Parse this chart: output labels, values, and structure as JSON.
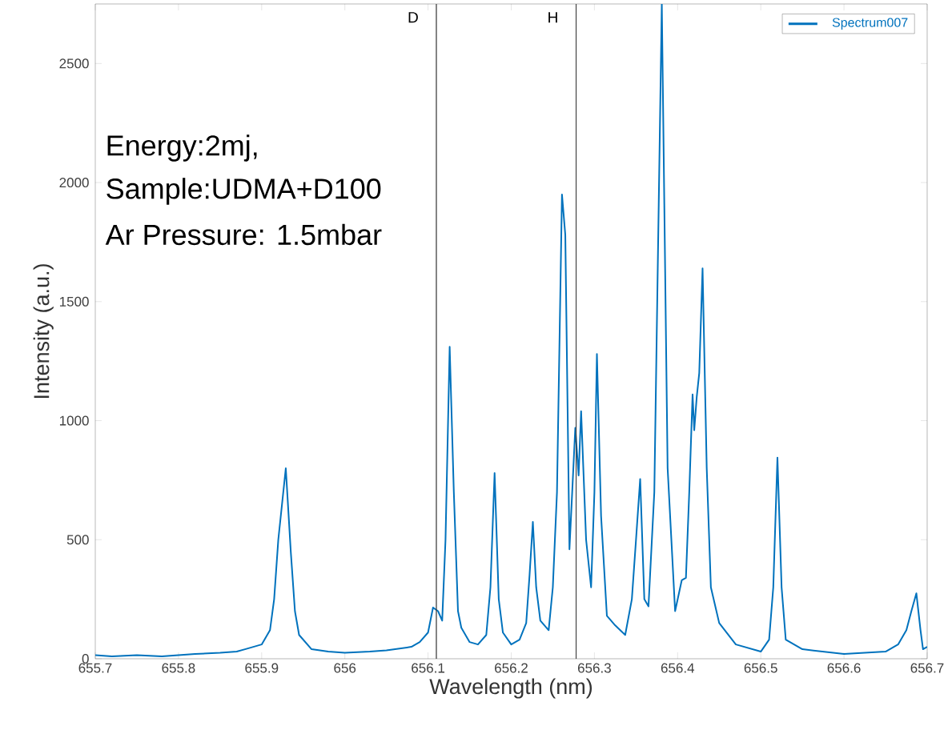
{
  "chart_data": {
    "type": "line",
    "xlabel": "Wavelength (nm)",
    "ylabel": "Intensity (a.u.)",
    "xlim": [
      655.7,
      656.7
    ],
    "ylim": [
      0,
      2750
    ],
    "xticks": [
      655.7,
      655.8,
      655.9,
      656,
      656.1,
      656.2,
      656.3,
      656.4,
      656.5,
      656.6,
      656.7
    ],
    "yticks": [
      0,
      500,
      1000,
      1500,
      2000,
      2500
    ],
    "legend": "top right",
    "grid": false,
    "annotations": [
      "Energy:2mj,",
      "Sample:UDMA+D100",
      "Ar Pressure: 1.5mbar"
    ],
    "ref_lines": [
      {
        "axis": "x",
        "value": 656.11,
        "label": "D",
        "color": "#404040"
      },
      {
        "axis": "x",
        "value": 656.278,
        "label": "H",
        "color": "#404040"
      }
    ],
    "series": [
      {
        "name": "Spectrum007",
        "color": "#0072bd",
        "x": [
          655.7,
          655.72,
          655.75,
          655.78,
          655.8,
          655.82,
          655.85,
          655.87,
          655.88,
          655.9,
          655.91,
          655.915,
          655.92,
          655.929,
          655.935,
          655.94,
          655.945,
          655.96,
          655.98,
          656.0,
          656.03,
          656.05,
          656.08,
          656.09,
          656.1,
          656.106,
          656.112,
          656.117,
          656.121,
          656.126,
          656.131,
          656.136,
          656.14,
          656.15,
          656.16,
          656.17,
          656.175,
          656.18,
          656.185,
          656.19,
          656.2,
          656.21,
          656.218,
          656.222,
          656.226,
          656.23,
          656.235,
          656.245,
          656.25,
          656.255,
          656.261,
          656.265,
          656.27,
          656.277,
          656.281,
          656.284,
          656.29,
          656.296,
          656.3,
          656.303,
          656.308,
          656.315,
          656.325,
          656.337,
          656.345,
          656.35,
          656.355,
          656.36,
          656.365,
          656.372,
          656.381,
          656.388,
          656.397,
          656.405,
          656.41,
          656.414,
          656.418,
          656.42,
          656.423,
          656.426,
          656.43,
          656.435,
          656.44,
          656.45,
          656.47,
          656.5,
          656.51,
          656.515,
          656.52,
          656.525,
          656.53,
          656.55,
          656.6,
          656.65,
          656.665,
          656.675,
          656.681,
          656.687,
          656.692,
          656.695,
          656.7
        ],
        "values": [
          15,
          10,
          15,
          10,
          15,
          20,
          25,
          30,
          40,
          60,
          120,
          250,
          500,
          800,
          450,
          200,
          100,
          40,
          30,
          25,
          30,
          35,
          50,
          70,
          110,
          215,
          200,
          160,
          500,
          1310,
          700,
          200,
          130,
          70,
          60,
          100,
          300,
          780,
          250,
          110,
          60,
          80,
          150,
          350,
          575,
          300,
          160,
          120,
          300,
          700,
          1950,
          1780,
          460,
          970,
          770,
          1040,
          500,
          300,
          700,
          1280,
          600,
          180,
          140,
          100,
          250,
          500,
          755,
          250,
          220,
          700,
          2750,
          800,
          200,
          330,
          340,
          700,
          1110,
          960,
          1100,
          1200,
          1640,
          800,
          300,
          150,
          60,
          30,
          80,
          300,
          845,
          300,
          80,
          40,
          20,
          30,
          60,
          120,
          200,
          275,
          120,
          40,
          50
        ]
      }
    ]
  }
}
